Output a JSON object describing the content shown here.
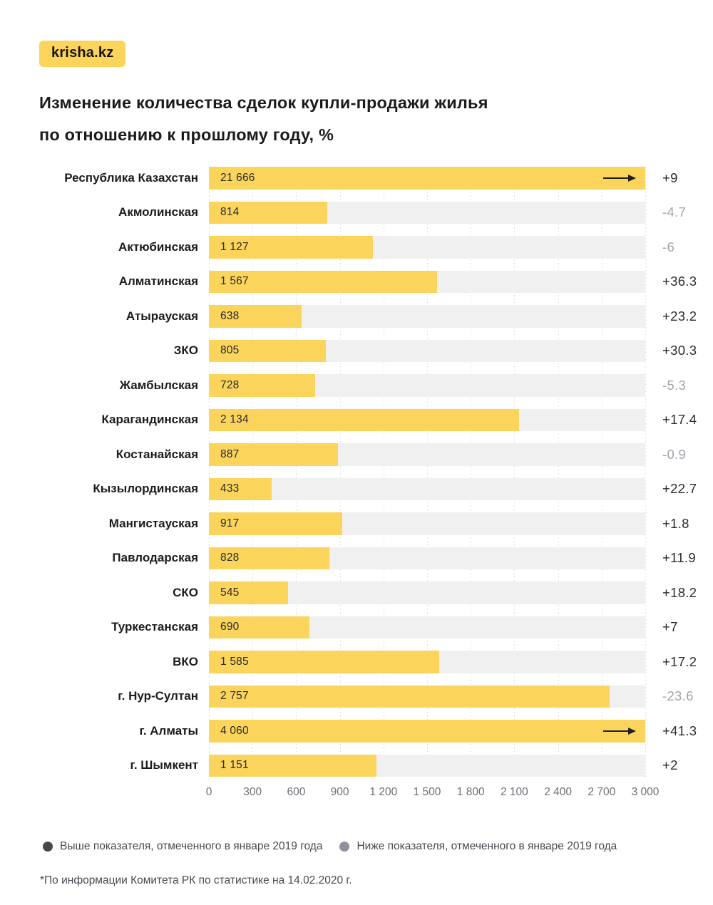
{
  "logo": "krisha.kz",
  "title": {
    "line1": "Изменение количества сделок купли-продажи жилья",
    "line2": "по отношению к прошлому году, %"
  },
  "chart_data": {
    "type": "bar",
    "orientation": "horizontal",
    "title": "Изменение количества сделок купли-продажи жилья по отношению к прошлому году, %",
    "xlim": [
      0,
      3000
    ],
    "x_ticks": [
      "0",
      "300",
      "600",
      "900",
      "1 200",
      "1 500",
      "1 800",
      "2 100",
      "2 400",
      "2 700",
      "3 000"
    ],
    "grid": "dotted-vertical",
    "rows": [
      {
        "region": "Республика Казахстан",
        "value": 21666,
        "value_label": "21 666",
        "pct": "+9",
        "below_jan2019": false,
        "overflow": true
      },
      {
        "region": "Акмолинская",
        "value": 814,
        "value_label": "814",
        "pct": "-4.7",
        "below_jan2019": true,
        "overflow": false
      },
      {
        "region": "Актюбинская",
        "value": 1127,
        "value_label": "1 127",
        "pct": "-6",
        "below_jan2019": true,
        "overflow": false
      },
      {
        "region": "Алматинская",
        "value": 1567,
        "value_label": "1 567",
        "pct": "+36.3",
        "below_jan2019": false,
        "overflow": false
      },
      {
        "region": "Атырауская",
        "value": 638,
        "value_label": "638",
        "pct": "+23.2",
        "below_jan2019": false,
        "overflow": false
      },
      {
        "region": "ЗКО",
        "value": 805,
        "value_label": "805",
        "pct": "+30.3",
        "below_jan2019": false,
        "overflow": false
      },
      {
        "region": "Жамбылская",
        "value": 728,
        "value_label": "728",
        "pct": "-5.3",
        "below_jan2019": true,
        "overflow": false
      },
      {
        "region": "Карагандинская",
        "value": 2134,
        "value_label": "2 134",
        "pct": "+17.4",
        "below_jan2019": false,
        "overflow": false
      },
      {
        "region": "Костанайская",
        "value": 887,
        "value_label": "887",
        "pct": "-0.9",
        "below_jan2019": true,
        "overflow": false
      },
      {
        "region": "Кызылординская",
        "value": 433,
        "value_label": "433",
        "pct": "+22.7",
        "below_jan2019": false,
        "overflow": false
      },
      {
        "region": "Мангистауская",
        "value": 917,
        "value_label": "917",
        "pct": "+1.8",
        "below_jan2019": false,
        "overflow": false
      },
      {
        "region": "Павлодарская",
        "value": 828,
        "value_label": "828",
        "pct": "+11.9",
        "below_jan2019": false,
        "overflow": false
      },
      {
        "region": "СКО",
        "value": 545,
        "value_label": "545",
        "pct": "+18.2",
        "below_jan2019": false,
        "overflow": false
      },
      {
        "region": "Туркестанская",
        "value": 690,
        "value_label": "690",
        "pct": "+7",
        "below_jan2019": false,
        "overflow": false
      },
      {
        "region": "ВКО",
        "value": 1585,
        "value_label": "1 585",
        "pct": "+17.2",
        "below_jan2019": false,
        "overflow": false
      },
      {
        "region": "г. Нур-Султан",
        "value": 2757,
        "value_label": "2 757",
        "pct": "-23.6",
        "below_jan2019": true,
        "overflow": false
      },
      {
        "region": "г. Алматы",
        "value": 4060,
        "value_label": "4 060",
        "pct": "+41.3",
        "below_jan2019": false,
        "overflow": true
      },
      {
        "region": "г. Шымкент",
        "value": 1151,
        "value_label": "1 151",
        "pct": "+2",
        "below_jan2019": false,
        "overflow": false
      }
    ]
  },
  "legend": [
    {
      "label": "Выше показателя, отмеченного в январе 2019 года",
      "dot_color": "#474750"
    },
    {
      "label": "Ниже показателя, отмеченного в январе 2019 года",
      "dot_color": "#8F909B"
    }
  ],
  "footnote": "*По информации Комитета РК по статистике на 14.02.2020 г.",
  "colors": {
    "bar_yellow": "#FBD45C",
    "track_gray": "#F0F0F1",
    "pct_positive": "#2C2C31",
    "pct_negative": "#A2A3AA",
    "axis_text": "#6F6F77",
    "arrow": "#1F1F24"
  }
}
